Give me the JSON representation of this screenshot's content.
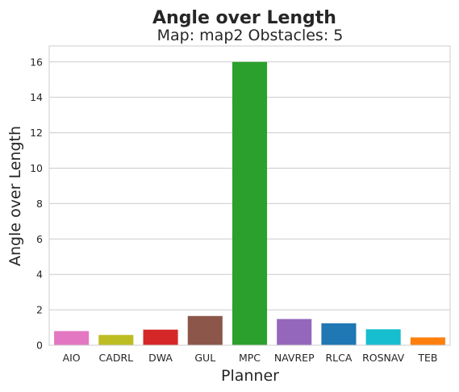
{
  "chart_data": {
    "type": "bar",
    "title": "Angle over Length",
    "subtitle": "Map: map2 Obstacles: 5",
    "xlabel": "Planner",
    "ylabel": "Angle over Length",
    "categories": [
      "AIO",
      "CADRL",
      "DWA",
      "GUL",
      "MPC",
      "NAVREP",
      "RLCA",
      "ROSNAV",
      "TEB"
    ],
    "values": [
      0.8,
      0.58,
      0.88,
      1.65,
      16.0,
      1.48,
      1.24,
      0.9,
      0.44
    ],
    "colors": [
      "#e377c2",
      "#bcbd22",
      "#d62728",
      "#8c564b",
      "#2ca02c",
      "#9467bd",
      "#1f77b4",
      "#17becf",
      "#ff7f0e"
    ],
    "ylim": [
      0,
      16.9
    ],
    "yticks": [
      0,
      2,
      4,
      6,
      8,
      10,
      12,
      14,
      16
    ],
    "grid": true,
    "legend": "none"
  }
}
